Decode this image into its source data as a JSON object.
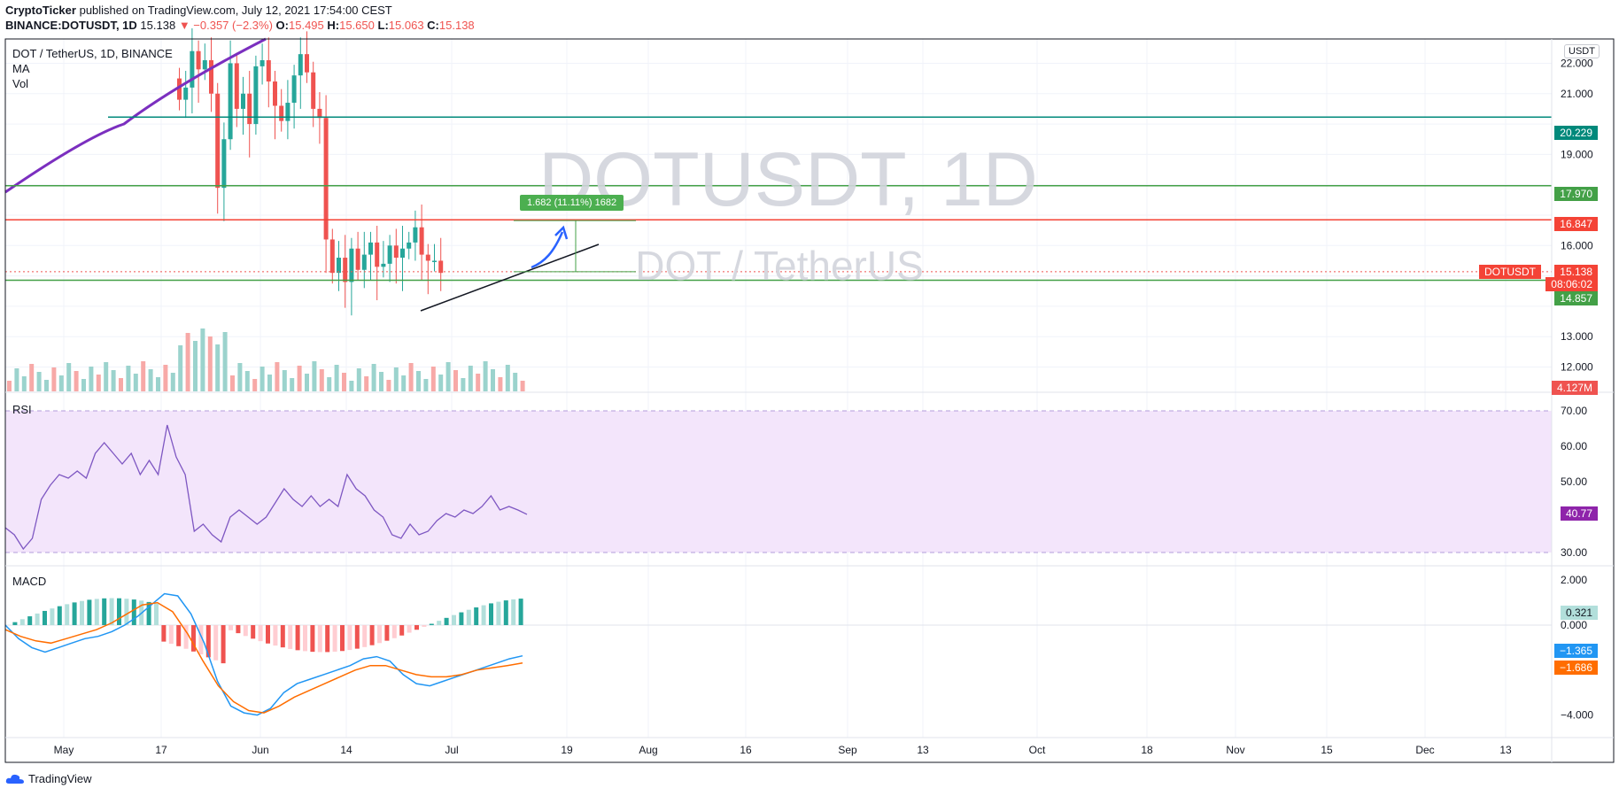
{
  "header": {
    "publisher": "CryptoTicker",
    "published_text": "published on TradingView.com, July 12, 2021 17:54:00 CEST",
    "symbol_full": "BINANCE:DOTUSDT, 1D",
    "last": "15.138",
    "change": "▼ −0.357 (−2.3%)",
    "o_label": "O:",
    "o_value": "15.495",
    "h_label": "H:",
    "h_value": "15.650",
    "l_label": "L:",
    "l_value": "15.063",
    "c_label": "C:",
    "c_value": "15.138"
  },
  "legend": {
    "title": "DOT / TetherUS, 1D, BINANCE",
    "ma": "MA",
    "vol": "Vol"
  },
  "watermark": {
    "line1": "DOTUSDT, 1D",
    "line2": "DOT / TetherUS"
  },
  "currency_button": "USDT",
  "measure_label": "1.682 (11.11%) 1682",
  "badges": {
    "level_top": "20.229",
    "level_green_upper": "17.970",
    "level_red": "16.847",
    "symbol": "DOTUSDT",
    "price": "15.138",
    "countdown": "08:06:02",
    "level_green_lower": "14.857",
    "volume": "4.127M",
    "rsi": "40.77",
    "macd_hist": "0.321",
    "macd_line": "−1.365",
    "signal_line": "−1.686"
  },
  "panes": {
    "rsi_label": "RSI",
    "macd_label": "MACD"
  },
  "footer": {
    "brand": "TradingView"
  },
  "colors": {
    "up": "#26a69a",
    "down": "#ef5350",
    "ma": "#7b2fbf",
    "rsi_line": "#7e57c2",
    "rsi_band": "#f3e5fb",
    "macd_line": "#2196f3",
    "signal_line": "#ff6d00",
    "level_teal": "#00897b",
    "level_green": "#43a047",
    "level_red": "#f44336"
  },
  "chart_data": [
    {
      "type": "candlestick",
      "title": "DOT / TetherUS, 1D, BINANCE",
      "x_ticks": [
        "May",
        "17",
        "Jun",
        "14",
        "Jul",
        "19",
        "Aug",
        "16",
        "Sep",
        "13",
        "Oct",
        "18",
        "Nov",
        "15",
        "Dec",
        "13"
      ],
      "y_ticks": [
        12.0,
        13.0,
        14.0,
        15.0,
        16.0,
        17.0,
        18.0,
        19.0,
        20.0,
        21.0,
        22.0
      ],
      "y_tick_labels": [
        "12.000",
        "13.000",
        "",
        "",
        "16.000",
        "",
        "",
        "19.000",
        "",
        "21.000",
        "22.000"
      ],
      "ylim": [
        11.2,
        22.8
      ],
      "series_close": [
        20.8,
        21.2,
        22.4,
        21.8,
        22.1,
        21.0,
        17.9,
        19.5,
        22.0,
        20.5,
        21.0,
        20.0,
        21.9,
        22.1,
        21.4,
        20.6,
        20.1,
        20.7,
        21.6,
        22.3,
        21.7,
        20.5,
        20.2,
        16.2,
        15.1,
        15.6,
        14.8,
        15.9,
        15.2,
        15.7,
        16.1,
        15.3,
        15.4,
        16.0,
        15.6,
        15.9,
        16.1,
        16.6,
        15.7,
        15.5,
        15.5,
        15.1
      ],
      "horizontal_levels": [
        20.229,
        17.97,
        16.847,
        14.857
      ],
      "current_price": 15.138,
      "measure": {
        "from": 15.138,
        "to": 16.82,
        "label": "1.682 (11.11%) 1682"
      },
      "volume_last": "4.127M"
    },
    {
      "type": "line",
      "name": "RSI",
      "ylim": [
        30,
        70
      ],
      "y_ticks": [
        30,
        40,
        50,
        60,
        70
      ],
      "y_tick_labels": [
        "30.00",
        "",
        "50.00",
        "60.00",
        "70.00"
      ],
      "values": [
        37,
        35,
        31,
        34,
        45,
        49,
        52,
        51,
        53,
        51,
        58,
        61,
        58,
        55,
        58,
        52,
        56,
        52,
        66,
        57,
        52,
        36,
        38,
        35,
        33,
        40,
        42,
        40,
        38,
        40,
        44,
        48,
        45,
        43,
        46,
        43,
        45,
        43,
        52,
        48,
        46,
        42,
        40,
        35,
        34,
        38,
        35,
        36,
        39,
        41,
        40,
        42,
        41,
        43,
        46,
        42,
        43,
        42,
        40.77
      ],
      "last": 40.77
    },
    {
      "type": "line",
      "name": "MACD",
      "y_ticks": [
        2.0,
        0.0,
        -4.0
      ],
      "y_tick_labels": [
        "2.000",
        "0.000",
        "−4.000"
      ],
      "ylim": [
        -5.0,
        2.6
      ],
      "macd": [
        0.0,
        -0.6,
        -1.0,
        -1.2,
        -1.0,
        -0.8,
        -0.6,
        -0.5,
        -0.3,
        0.0,
        0.4,
        0.9,
        1.4,
        1.3,
        0.5,
        -0.8,
        -2.5,
        -3.6,
        -3.9,
        -4.0,
        -3.7,
        -3.0,
        -2.6,
        -2.4,
        -2.2,
        -2.0,
        -1.8,
        -1.5,
        -1.4,
        -1.6,
        -2.2,
        -2.6,
        -2.7,
        -2.5,
        -2.3,
        -2.1,
        -1.9,
        -1.7,
        -1.5,
        -1.365
      ],
      "signal": [
        -0.2,
        -0.5,
        -0.7,
        -0.8,
        -0.6,
        -0.4,
        -0.2,
        0.1,
        0.5,
        0.9,
        1.0,
        0.6,
        -0.4,
        -1.6,
        -2.7,
        -3.4,
        -3.8,
        -3.9,
        -3.6,
        -3.2,
        -2.9,
        -2.6,
        -2.3,
        -2.0,
        -1.8,
        -1.8,
        -2.0,
        -2.2,
        -2.3,
        -2.3,
        -2.2,
        -2.0,
        -1.9,
        -1.8,
        -1.686
      ],
      "histogram_last": 0.321,
      "macd_last": -1.365,
      "signal_last": -1.686
    }
  ]
}
